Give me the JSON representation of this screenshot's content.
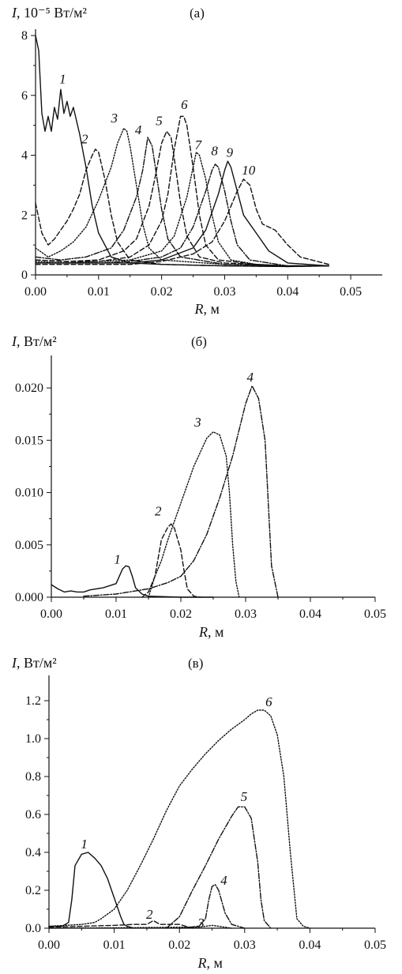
{
  "chart_data": [
    {
      "panel": "(a)",
      "panel_label": "(а)",
      "type": "line",
      "ylabel": "I, 10⁻⁵ Вт/м²",
      "xlabel": "R, м",
      "xlim": [
        0,
        0.055
      ],
      "ylim": [
        0,
        8
      ],
      "x_ticks": [
        {
          "value": 0,
          "label": "0.00"
        },
        {
          "value": 0.01,
          "label": "0.01"
        },
        {
          "value": 0.02,
          "label": "0.02"
        },
        {
          "value": 0.03,
          "label": "0.03"
        },
        {
          "value": 0.04,
          "label": "0.04"
        },
        {
          "value": 0.05,
          "label": "0.05"
        }
      ],
      "y_ticks": [
        {
          "value": 0,
          "label": "0"
        },
        {
          "value": 2,
          "label": "2"
        },
        {
          "value": 4,
          "label": "4"
        },
        {
          "value": 6,
          "label": "6"
        },
        {
          "value": 8,
          "label": "8"
        }
      ],
      "grid": false,
      "series": [
        {
          "name": "1",
          "dash": "solid",
          "label_at": [
            0.0043,
            6.4
          ],
          "x": [
            0,
            0.0005,
            0.001,
            0.0015,
            0.002,
            0.0025,
            0.003,
            0.0035,
            0.004,
            0.0045,
            0.005,
            0.0055,
            0.006,
            0.007,
            0.008,
            0.009,
            0.01,
            0.012,
            0.015,
            0.02,
            0.03,
            0.04,
            0.0465
          ],
          "y": [
            8.0,
            7.5,
            5.4,
            4.8,
            5.3,
            4.8,
            5.6,
            5.2,
            6.2,
            5.4,
            5.8,
            5.3,
            5.6,
            4.7,
            3.6,
            2.3,
            1.4,
            0.6,
            0.4,
            0.35,
            0.3,
            0.28,
            0.3
          ]
        },
        {
          "name": "2",
          "dash": "6,3",
          "label_at": [
            0.0078,
            4.4
          ],
          "x": [
            0,
            0.001,
            0.002,
            0.003,
            0.004,
            0.005,
            0.006,
            0.007,
            0.008,
            0.009,
            0.0095,
            0.01,
            0.011,
            0.012,
            0.013,
            0.015,
            0.02,
            0.03,
            0.04,
            0.0465
          ],
          "y": [
            2.4,
            1.4,
            1.0,
            1.2,
            1.5,
            1.8,
            2.2,
            2.7,
            3.5,
            4.0,
            4.2,
            4.1,
            3.2,
            2.0,
            1.1,
            0.5,
            0.35,
            0.3,
            0.28,
            0.3
          ]
        },
        {
          "name": "3",
          "dash": "1.5,2",
          "label_at": [
            0.0125,
            5.1
          ],
          "x": [
            0,
            0.002,
            0.004,
            0.006,
            0.008,
            0.01,
            0.012,
            0.013,
            0.014,
            0.0145,
            0.015,
            0.016,
            0.017,
            0.018,
            0.02,
            0.03,
            0.04,
            0.0465
          ],
          "y": [
            0.9,
            0.6,
            0.8,
            1.1,
            1.6,
            2.5,
            3.6,
            4.4,
            4.9,
            4.8,
            4.3,
            3.0,
            1.7,
            0.9,
            0.5,
            0.35,
            0.3,
            0.3
          ]
        },
        {
          "name": "4",
          "dash": "7,2,1.5,2",
          "label_at": [
            0.0163,
            4.7
          ],
          "x": [
            0,
            0.004,
            0.008,
            0.012,
            0.014,
            0.016,
            0.017,
            0.0178,
            0.0185,
            0.019,
            0.02,
            0.021,
            0.023,
            0.03,
            0.04,
            0.0465
          ],
          "y": [
            0.6,
            0.5,
            0.6,
            0.9,
            1.5,
            2.6,
            3.5,
            4.6,
            4.3,
            3.6,
            2.2,
            1.2,
            0.6,
            0.35,
            0.3,
            0.3
          ]
        },
        {
          "name": "5",
          "dash": "6,3",
          "label_at": [
            0.0196,
            5.0
          ],
          "x": [
            0,
            0.005,
            0.01,
            0.014,
            0.016,
            0.018,
            0.019,
            0.02,
            0.0208,
            0.0215,
            0.022,
            0.023,
            0.024,
            0.026,
            0.03,
            0.04,
            0.0465
          ],
          "y": [
            0.5,
            0.45,
            0.5,
            0.8,
            1.2,
            2.3,
            3.3,
            4.4,
            4.8,
            4.6,
            3.9,
            2.4,
            1.3,
            0.6,
            0.4,
            0.3,
            0.3
          ]
        },
        {
          "name": "6",
          "dash": "6,3",
          "label_at": [
            0.0236,
            5.55
          ],
          "x": [
            0,
            0.005,
            0.01,
            0.015,
            0.018,
            0.02,
            0.021,
            0.022,
            0.023,
            0.0235,
            0.024,
            0.025,
            0.026,
            0.027,
            0.029,
            0.035,
            0.04,
            0.0465
          ],
          "y": [
            0.5,
            0.45,
            0.45,
            0.6,
            1.0,
            1.8,
            2.7,
            4.2,
            5.3,
            5.3,
            5.0,
            3.6,
            2.0,
            1.0,
            0.5,
            0.35,
            0.3,
            0.3
          ]
        },
        {
          "name": "7",
          "dash": "1.5,2",
          "label_at": [
            0.0258,
            4.2
          ],
          "x": [
            0,
            0.005,
            0.01,
            0.015,
            0.02,
            0.022,
            0.024,
            0.025,
            0.0255,
            0.026,
            0.027,
            0.028,
            0.029,
            0.031,
            0.035,
            0.04,
            0.0465
          ],
          "y": [
            0.45,
            0.4,
            0.45,
            0.5,
            0.8,
            1.3,
            2.6,
            3.6,
            4.1,
            4.0,
            3.2,
            2.0,
            1.1,
            0.5,
            0.35,
            0.3,
            0.3
          ]
        },
        {
          "name": "8",
          "dash": "7,2,1.5,2",
          "label_at": [
            0.0284,
            4.0
          ],
          "x": [
            0,
            0.005,
            0.01,
            0.015,
            0.02,
            0.023,
            0.025,
            0.027,
            0.028,
            0.0285,
            0.029,
            0.03,
            0.031,
            0.032,
            0.034,
            0.04,
            0.0465
          ],
          "y": [
            0.4,
            0.4,
            0.4,
            0.45,
            0.6,
            0.9,
            1.6,
            2.8,
            3.5,
            3.7,
            3.6,
            2.8,
            1.8,
            1.0,
            0.5,
            0.3,
            0.3
          ]
        },
        {
          "name": "9",
          "dash": "solid",
          "label_at": [
            0.0308,
            3.95
          ],
          "x": [
            0,
            0.005,
            0.01,
            0.015,
            0.02,
            0.025,
            0.027,
            0.029,
            0.03,
            0.0305,
            0.031,
            0.032,
            0.033,
            0.035,
            0.037,
            0.04,
            0.0465
          ],
          "y": [
            0.4,
            0.4,
            0.4,
            0.4,
            0.5,
            0.9,
            1.5,
            2.7,
            3.5,
            3.8,
            3.6,
            2.8,
            2.0,
            1.4,
            0.8,
            0.4,
            0.3
          ]
        },
        {
          "name": "10",
          "dash": "6,3",
          "label_at": [
            0.0338,
            3.35
          ],
          "x": [
            0,
            0.005,
            0.01,
            0.015,
            0.02,
            0.025,
            0.028,
            0.03,
            0.032,
            0.033,
            0.034,
            0.035,
            0.036,
            0.038,
            0.04,
            0.042,
            0.0465
          ],
          "y": [
            0.35,
            0.35,
            0.35,
            0.35,
            0.45,
            0.7,
            1.1,
            1.8,
            2.8,
            3.2,
            3.0,
            2.2,
            1.7,
            1.5,
            1.0,
            0.6,
            0.35
          ]
        }
      ]
    },
    {
      "panel": "(b)",
      "panel_label": "(б)",
      "type": "line",
      "ylabel": "I, Вт/м²",
      "xlabel": "R, м",
      "xlim": [
        0,
        0.05
      ],
      "ylim": [
        0,
        0.0225
      ],
      "x_ticks": [
        {
          "value": 0,
          "label": "0.00"
        },
        {
          "value": 0.01,
          "label": "0.01"
        },
        {
          "value": 0.02,
          "label": "0.02"
        },
        {
          "value": 0.03,
          "label": "0.03"
        },
        {
          "value": 0.04,
          "label": "0.04"
        },
        {
          "value": 0.05,
          "label": "0.05"
        }
      ],
      "y_ticks": [
        {
          "value": 0,
          "label": "0.000"
        },
        {
          "value": 0.005,
          "label": "0.005"
        },
        {
          "value": 0.01,
          "label": "0.010"
        },
        {
          "value": 0.015,
          "label": "0.015"
        },
        {
          "value": 0.02,
          "label": "0.020"
        }
      ],
      "grid": false,
      "series": [
        {
          "name": "1",
          "dash": "solid",
          "label_at": [
            0.0102,
            0.0032
          ],
          "x": [
            0,
            0.001,
            0.002,
            0.003,
            0.004,
            0.005,
            0.006,
            0.008,
            0.01,
            0.011,
            0.0115,
            0.012,
            0.0125,
            0.013,
            0.014,
            0.015,
            0.02,
            0.025
          ],
          "y": [
            0.0012,
            0.0008,
            0.0005,
            0.0006,
            0.0005,
            0.0005,
            0.0007,
            0.0009,
            0.0013,
            0.0027,
            0.003,
            0.0029,
            0.002,
            0.0009,
            0.0003,
            0.0001,
            0.0,
            0.0
          ]
        },
        {
          "name": "2",
          "dash": "6,3",
          "label_at": [
            0.0165,
            0.0078
          ],
          "x": [
            0.014,
            0.015,
            0.016,
            0.017,
            0.018,
            0.0185,
            0.019,
            0.02,
            0.0205,
            0.021,
            0.022,
            0.023
          ],
          "y": [
            0.0,
            0.0005,
            0.002,
            0.0055,
            0.0067,
            0.007,
            0.0066,
            0.0045,
            0.0025,
            0.0008,
            0.0001,
            0.0
          ]
        },
        {
          "name": "3",
          "dash": "1.5,2",
          "label_at": [
            0.0226,
            0.0163
          ],
          "x": [
            0.015,
            0.016,
            0.017,
            0.018,
            0.02,
            0.022,
            0.024,
            0.025,
            0.026,
            0.027,
            0.0275,
            0.028,
            0.0285,
            0.029
          ],
          "y": [
            0.0,
            0.002,
            0.0035,
            0.0055,
            0.009,
            0.0125,
            0.0152,
            0.0158,
            0.0155,
            0.0135,
            0.01,
            0.005,
            0.0015,
            0.0
          ]
        },
        {
          "name": "4",
          "dash": "7,2,1.5,2",
          "label_at": [
            0.0307,
            0.0206
          ],
          "x": [
            0.005,
            0.01,
            0.015,
            0.018,
            0.02,
            0.022,
            0.024,
            0.026,
            0.028,
            0.03,
            0.031,
            0.032,
            0.033,
            0.0335,
            0.034,
            0.035
          ],
          "y": [
            0.0001,
            0.0003,
            0.0008,
            0.0014,
            0.002,
            0.0035,
            0.006,
            0.0095,
            0.0135,
            0.0185,
            0.0202,
            0.019,
            0.015,
            0.009,
            0.003,
            0.0
          ]
        }
      ]
    },
    {
      "panel": "(c)",
      "panel_label": "(в)",
      "type": "line",
      "ylabel": "I, Вт/м²",
      "xlabel": "R, м",
      "xlim": [
        0,
        0.05
      ],
      "ylim": [
        0,
        1.3
      ],
      "x_ticks": [
        {
          "value": 0,
          "label": "0.00"
        },
        {
          "value": 0.01,
          "label": "0.01"
        },
        {
          "value": 0.02,
          "label": "0.02"
        },
        {
          "value": 0.03,
          "label": "0.03"
        },
        {
          "value": 0.04,
          "label": "0.04"
        },
        {
          "value": 0.05,
          "label": "0.05"
        }
      ],
      "y_ticks": [
        {
          "value": 0,
          "label": "0.0"
        },
        {
          "value": 0.2,
          "label": "0.2"
        },
        {
          "value": 0.4,
          "label": "0.4"
        },
        {
          "value": 0.6,
          "label": "0.6"
        },
        {
          "value": 0.8,
          "label": "0.8"
        },
        {
          "value": 1.0,
          "label": "1.0"
        },
        {
          "value": 1.2,
          "label": "1.2"
        }
      ],
      "grid": false,
      "series": [
        {
          "name": "1",
          "dash": "solid",
          "label_at": [
            0.0054,
            0.42
          ],
          "x": [
            0,
            0.002,
            0.003,
            0.0035,
            0.004,
            0.005,
            0.006,
            0.007,
            0.008,
            0.009,
            0.01,
            0.011,
            0.0115,
            0.012,
            0.013
          ],
          "y": [
            0.01,
            0.01,
            0.03,
            0.15,
            0.33,
            0.39,
            0.4,
            0.37,
            0.33,
            0.26,
            0.16,
            0.06,
            0.02,
            0.01,
            0.0
          ]
        },
        {
          "name": "2",
          "dash": "6,3",
          "label_at": [
            0.0154,
            0.05
          ],
          "x": [
            0,
            0.005,
            0.01,
            0.013,
            0.015,
            0.016,
            0.017,
            0.02,
            0.022
          ],
          "y": [
            0.005,
            0.01,
            0.015,
            0.02,
            0.02,
            0.04,
            0.02,
            0.02,
            0.0
          ]
        },
        {
          "name": "3",
          "dash": "1.5,2",
          "label_at": [
            0.0233,
            0.005
          ],
          "x": [
            0,
            0.01,
            0.02,
            0.023,
            0.024,
            0.025,
            0.026,
            0.027,
            0.028
          ],
          "y": [
            0.0,
            0.002,
            0.005,
            0.005,
            0.01,
            0.015,
            0.01,
            0.005,
            0.0
          ]
        },
        {
          "name": "4",
          "dash": "7,2,1.5,2",
          "label_at": [
            0.0268,
            0.23
          ],
          "x": [
            0.02,
            0.023,
            0.024,
            0.0245,
            0.025,
            0.0255,
            0.026,
            0.027,
            0.028,
            0.03
          ],
          "y": [
            0.0,
            0.01,
            0.05,
            0.15,
            0.22,
            0.23,
            0.2,
            0.08,
            0.02,
            0.0
          ]
        },
        {
          "name": "5",
          "dash": "7,2,1.5,2",
          "label_at": [
            0.0299,
            0.67
          ],
          "x": [
            0.018,
            0.02,
            0.022,
            0.024,
            0.026,
            0.028,
            0.029,
            0.03,
            0.031,
            0.032,
            0.0325,
            0.033,
            0.034
          ],
          "y": [
            0.0,
            0.06,
            0.2,
            0.33,
            0.47,
            0.59,
            0.64,
            0.64,
            0.58,
            0.35,
            0.15,
            0.04,
            0.0
          ]
        },
        {
          "name": "6",
          "dash": "1.5,2",
          "label_at": [
            0.0337,
            1.17
          ],
          "x": [
            0,
            0.005,
            0.007,
            0.008,
            0.01,
            0.012,
            0.014,
            0.016,
            0.018,
            0.02,
            0.022,
            0.024,
            0.026,
            0.028,
            0.03,
            0.031,
            0.032,
            0.033,
            0.034,
            0.035,
            0.036,
            0.037,
            0.038,
            0.039,
            0.04
          ],
          "y": [
            0.01,
            0.02,
            0.03,
            0.05,
            0.1,
            0.2,
            0.33,
            0.47,
            0.62,
            0.75,
            0.84,
            0.92,
            0.99,
            1.05,
            1.1,
            1.13,
            1.15,
            1.15,
            1.12,
            1.02,
            0.8,
            0.4,
            0.05,
            0.01,
            0.0
          ]
        }
      ]
    }
  ]
}
